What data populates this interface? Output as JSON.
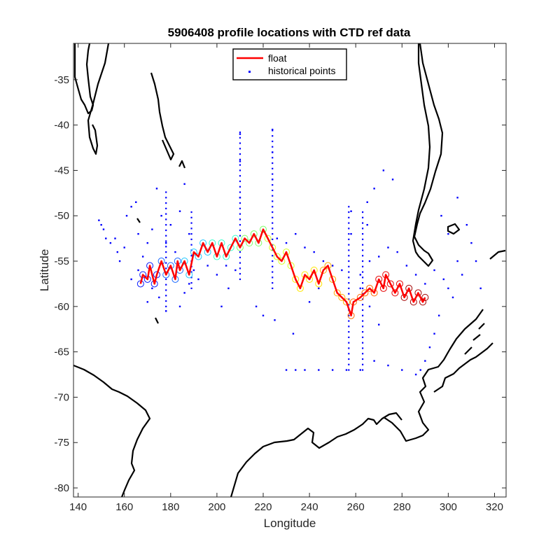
{
  "chart_data": {
    "type": "line",
    "title": "5906408 profile locations with CTD ref data",
    "xlabel": "Longitude",
    "ylabel": "Latitude",
    "xlim": [
      138,
      325
    ],
    "ylim": [
      -81,
      -31
    ],
    "xticks": [
      140,
      160,
      180,
      200,
      220,
      240,
      260,
      280,
      300,
      320
    ],
    "yticks": [
      -35,
      -40,
      -45,
      -50,
      -55,
      -60,
      -65,
      -70,
      -75,
      -80
    ],
    "grid": false,
    "legend": {
      "placement": "top-center",
      "entries": [
        {
          "label": "float",
          "color": "#ff0000",
          "marker": "line"
        },
        {
          "label": "historical points",
          "color": "#0000ff",
          "marker": "dot"
        }
      ]
    },
    "series": [
      {
        "name": "float",
        "color": "#ff0000",
        "points": [
          [
            167,
            -57.5
          ],
          [
            168,
            -56.5
          ],
          [
            170,
            -57.0
          ],
          [
            171,
            -55.5
          ],
          [
            173,
            -57.5
          ],
          [
            174,
            -56.5
          ],
          [
            176,
            -55.0
          ],
          [
            178,
            -56.5
          ],
          [
            180,
            -55.5
          ],
          [
            182,
            -57.0
          ],
          [
            183,
            -55.0
          ],
          [
            184,
            -56.0
          ],
          [
            186,
            -55.0
          ],
          [
            188,
            -56.5
          ],
          [
            190,
            -54.0
          ],
          [
            192,
            -54.5
          ],
          [
            194,
            -53.0
          ],
          [
            196,
            -54.0
          ],
          [
            198,
            -53.0
          ],
          [
            200,
            -54.5
          ],
          [
            202,
            -53.0
          ],
          [
            204,
            -54.5
          ],
          [
            206,
            -53.5
          ],
          [
            208,
            -52.5
          ],
          [
            210,
            -53.5
          ],
          [
            212,
            -52.5
          ],
          [
            214,
            -53.0
          ],
          [
            216,
            -52.0
          ],
          [
            218,
            -53.0
          ],
          [
            220,
            -51.5
          ],
          [
            222,
            -52.5
          ],
          [
            224,
            -53.5
          ],
          [
            226,
            -54.5
          ],
          [
            228,
            -55.0
          ],
          [
            230,
            -54.0
          ],
          [
            232,
            -55.5
          ],
          [
            234,
            -57.0
          ],
          [
            236,
            -58.0
          ],
          [
            238,
            -56.5
          ],
          [
            240,
            -57.0
          ],
          [
            242,
            -56.0
          ],
          [
            244,
            -57.5
          ],
          [
            246,
            -56.0
          ],
          [
            248,
            -55.5
          ],
          [
            250,
            -57.0
          ],
          [
            252,
            -58.5
          ],
          [
            254,
            -59.0
          ],
          [
            256,
            -59.5
          ],
          [
            258,
            -61.0
          ],
          [
            259,
            -59.5
          ],
          [
            262,
            -59.0
          ],
          [
            264,
            -58.5
          ],
          [
            266,
            -58.0
          ],
          [
            268,
            -58.5
          ],
          [
            270,
            -57.0
          ],
          [
            272,
            -58.0
          ],
          [
            273,
            -56.5
          ],
          [
            275,
            -57.5
          ],
          [
            277,
            -58.5
          ],
          [
            279,
            -57.5
          ],
          [
            281,
            -59.0
          ],
          [
            283,
            -58.0
          ],
          [
            285,
            -59.5
          ],
          [
            287,
            -58.5
          ],
          [
            289,
            -59.5
          ],
          [
            290,
            -59.0
          ]
        ]
      },
      {
        "name": "historical points",
        "color": "#0000ff",
        "points": [
          [
            149,
            -50.5
          ],
          [
            150,
            -51.0
          ],
          [
            151,
            -51.5
          ],
          [
            152,
            -52.5
          ],
          [
            154,
            -53.0
          ],
          [
            156,
            -52.5
          ],
          [
            157,
            -54.0
          ],
          [
            158,
            -55.0
          ],
          [
            160,
            -53.5
          ],
          [
            161,
            -50.0
          ],
          [
            163,
            -49.0
          ],
          [
            165,
            -48.5
          ],
          [
            166,
            -52.0
          ],
          [
            168,
            -54.5
          ],
          [
            170,
            -53.0
          ],
          [
            172,
            -51.5
          ],
          [
            174,
            -47.0
          ],
          [
            176,
            -50.0
          ],
          [
            178,
            -53.0
          ],
          [
            180,
            -51.0
          ],
          [
            182,
            -54.0
          ],
          [
            184,
            -49.5
          ],
          [
            186,
            -46.5
          ],
          [
            188,
            -52.0
          ],
          [
            190,
            -56.0
          ],
          [
            192,
            -57.0
          ],
          [
            196,
            -55.5
          ],
          [
            200,
            -56.5
          ],
          [
            204,
            -55.5
          ],
          [
            208,
            -56.0
          ],
          [
            226,
            -52.5
          ],
          [
            230,
            -53.0
          ],
          [
            234,
            -52.0
          ],
          [
            238,
            -53.5
          ],
          [
            242,
            -54.0
          ],
          [
            246,
            -55.0
          ],
          [
            250,
            -55.5
          ],
          [
            254,
            -56.0
          ],
          [
            262,
            -56.5
          ],
          [
            266,
            -55.0
          ],
          [
            270,
            -54.5
          ],
          [
            274,
            -53.5
          ],
          [
            278,
            -54.0
          ],
          [
            282,
            -55.5
          ],
          [
            286,
            -56.5
          ],
          [
            290,
            -57.5
          ],
          [
            294,
            -56.0
          ],
          [
            298,
            -57.0
          ],
          [
            300,
            -58.0
          ],
          [
            302,
            -59.0
          ],
          [
            304,
            -55.0
          ],
          [
            306,
            -56.5
          ],
          [
            300,
            -52.0
          ],
          [
            297,
            -50.0
          ],
          [
            304,
            -48.0
          ],
          [
            308,
            -51.0
          ],
          [
            310,
            -53.0
          ],
          [
            312,
            -55.0
          ],
          [
            314,
            -58.0
          ],
          [
            296,
            -61.0
          ],
          [
            294,
            -63.0
          ],
          [
            292,
            -64.5
          ],
          [
            290,
            -66.0
          ],
          [
            288,
            -67.0
          ],
          [
            286,
            -67.5
          ],
          [
            280,
            -67.0
          ],
          [
            274,
            -66.5
          ],
          [
            268,
            -66.0
          ],
          [
            262,
            -67.0
          ],
          [
            256,
            -67.0
          ],
          [
            250,
            -67.0
          ],
          [
            244,
            -67.0
          ],
          [
            238,
            -67.0
          ],
          [
            234,
            -67.0
          ],
          [
            230,
            -67.0
          ],
          [
            210,
            -41.0
          ],
          [
            210,
            -44.0
          ],
          [
            210,
            -48.0
          ],
          [
            224,
            -40.5
          ],
          [
            224,
            -43.0
          ],
          [
            224,
            -46.0
          ],
          [
            258,
            -49.5
          ],
          [
            258,
            -52.0
          ],
          [
            265,
            -48.5
          ],
          [
            265,
            -51.0
          ],
          [
            268,
            -47.0
          ],
          [
            272,
            -45.0
          ],
          [
            276,
            -46.0
          ],
          [
            262,
            -58.0
          ],
          [
            266,
            -60.0
          ],
          [
            270,
            -62.0
          ],
          [
            244,
            -58.0
          ],
          [
            240,
            -59.5
          ],
          [
            205,
            -58.0
          ],
          [
            202,
            -60.0
          ],
          [
            217,
            -60.0
          ],
          [
            220,
            -61.0
          ],
          [
            225,
            -61.5
          ],
          [
            233,
            -63.0
          ],
          [
            186,
            -58.5
          ],
          [
            184,
            -60.0
          ],
          [
            178,
            -60.5
          ],
          [
            172,
            -58.0
          ],
          [
            170,
            -59.5
          ],
          [
            175,
            -59.0
          ],
          [
            188,
            -57.5
          ],
          [
            163,
            -57.0
          ],
          [
            166,
            -56.0
          ]
        ],
        "vertical_tracks": [
          {
            "x": 178,
            "y_from": -60,
            "y_to": -47
          },
          {
            "x": 189,
            "y_from": -58,
            "y_to": -49
          },
          {
            "x": 210,
            "y_from": -57,
            "y_to": -40.5
          },
          {
            "x": 224,
            "y_from": -58,
            "y_to": -40.5
          },
          {
            "x": 257,
            "y_from": -67,
            "y_to": -48.5
          },
          {
            "x": 263,
            "y_from": -67,
            "y_to": -49
          }
        ]
      }
    ]
  }
}
